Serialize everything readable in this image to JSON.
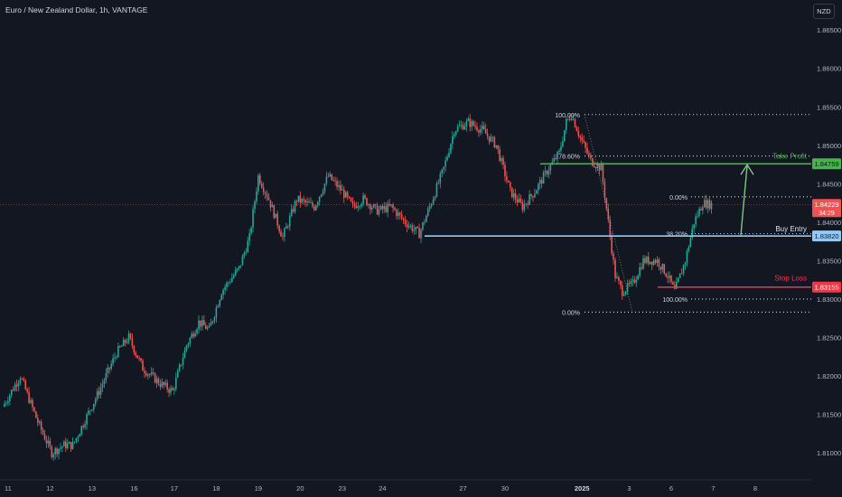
{
  "header": {
    "title": "Euro / New Zealand Dollar, 1h, VANTAGE",
    "currency": "NZD"
  },
  "colors": {
    "bg": "#131722",
    "up": "#26a69a",
    "down": "#ef5350",
    "grid": "#363a45",
    "take_profit": "#4caf50",
    "buy_entry": "#90caf9",
    "stop_loss": "#f23645",
    "arrow": "#81c784"
  },
  "chart_data": {
    "type": "candlestick",
    "title": "Euro / New Zealand Dollar, 1h, VANTAGE",
    "ylim": [
      1.8066,
      1.8689
    ],
    "yticks": [
      "1.86500",
      "1.86000",
      "1.85500",
      "1.85000",
      "1.84500",
      "1.84000",
      "1.83500",
      "1.83000",
      "1.82500",
      "1.82000",
      "1.81500",
      "1.81000"
    ],
    "xticks": [
      {
        "label": "11",
        "bar": 2
      },
      {
        "label": "12",
        "bar": 26
      },
      {
        "label": "13",
        "bar": 50
      },
      {
        "label": "16",
        "bar": 74
      },
      {
        "label": "17",
        "bar": 97
      },
      {
        "label": "18",
        "bar": 121
      },
      {
        "label": "19",
        "bar": 145
      },
      {
        "label": "20",
        "bar": 169
      },
      {
        "label": "23",
        "bar": 193
      },
      {
        "label": "24",
        "bar": 216
      },
      {
        "label": "27",
        "bar": 262
      },
      {
        "label": "30",
        "bar": 286
      },
      {
        "label": "2025",
        "bar": 330
      },
      {
        "label": "3",
        "bar": 357
      },
      {
        "label": "6",
        "bar": 381
      },
      {
        "label": "7",
        "bar": 405
      },
      {
        "label": "8",
        "bar": 429
      }
    ],
    "path_points": [
      [
        0,
        1.816
      ],
      [
        10,
        1.82
      ],
      [
        20,
        1.814
      ],
      [
        28,
        1.81
      ],
      [
        35,
        1.811
      ],
      [
        40,
        1.811
      ],
      [
        55,
        1.818
      ],
      [
        65,
        1.823
      ],
      [
        72,
        1.825
      ],
      [
        80,
        1.821
      ],
      [
        90,
        1.819
      ],
      [
        97,
        1.818
      ],
      [
        105,
        1.824
      ],
      [
        112,
        1.827
      ],
      [
        118,
        1.826
      ],
      [
        125,
        1.831
      ],
      [
        135,
        1.834
      ],
      [
        141,
        1.838
      ],
      [
        146,
        1.846
      ],
      [
        152,
        1.843
      ],
      [
        160,
        1.838
      ],
      [
        168,
        1.843
      ],
      [
        178,
        1.842
      ],
      [
        186,
        1.846
      ],
      [
        194,
        1.844
      ],
      [
        200,
        1.842
      ],
      [
        206,
        1.843
      ],
      [
        214,
        1.8415
      ],
      [
        222,
        1.842
      ],
      [
        230,
        1.84
      ],
      [
        238,
        1.8385
      ],
      [
        244,
        1.842
      ],
      [
        252,
        1.847
      ],
      [
        258,
        1.852
      ],
      [
        266,
        1.853
      ],
      [
        274,
        1.852
      ],
      [
        282,
        1.85
      ],
      [
        290,
        1.844
      ],
      [
        297,
        1.842
      ],
      [
        304,
        1.844
      ],
      [
        312,
        1.847
      ],
      [
        318,
        1.849
      ],
      [
        322,
        1.853
      ],
      [
        325,
        1.854
      ],
      [
        330,
        1.851
      ],
      [
        336,
        1.848
      ],
      [
        342,
        1.847
      ],
      [
        346,
        1.84
      ],
      [
        350,
        1.833
      ],
      [
        354,
        1.831
      ],
      [
        360,
        1.832
      ],
      [
        366,
        1.835
      ],
      [
        374,
        1.835
      ],
      [
        380,
        1.833
      ],
      [
        384,
        1.831
      ],
      [
        390,
        1.835
      ],
      [
        395,
        1.84
      ],
      [
        400,
        1.8425
      ],
      [
        404,
        1.8423
      ]
    ],
    "last_price": "1.84229",
    "countdown": "34:29",
    "current_price_line": 1.8423,
    "price_lines": [
      {
        "name": "Take Profit",
        "value": 1.84759,
        "label": "1.84759"
      },
      {
        "name": "Buy Entry",
        "value": 1.8382,
        "label": "1.83820"
      },
      {
        "name": "Stop Loss",
        "value": 1.83155,
        "label": "1.83155"
      }
    ],
    "fib_levels": [
      {
        "label": "100.00%",
        "value": 1.854
      },
      {
        "label": "78.60%",
        "value": 1.8486
      },
      {
        "label": "0.00%",
        "value": 1.8283
      },
      {
        "label": "0.00%",
        "value": 1.8433
      },
      {
        "label": "38.20%",
        "value": 1.8385
      },
      {
        "label": "100.00%",
        "value": 1.83
      }
    ]
  },
  "annotations": {
    "take_profit": "Take Profit",
    "buy_entry": "Buy Entry",
    "stop_loss": "Stop Loss"
  }
}
